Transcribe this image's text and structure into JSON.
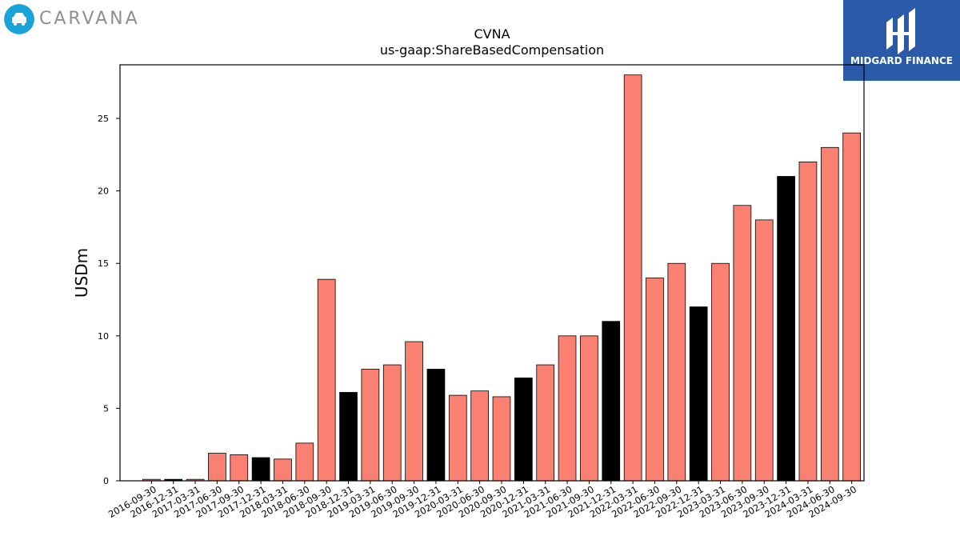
{
  "logos": {
    "carvana": {
      "text": "CARVANA",
      "accent": "#1aa3d9"
    },
    "midgard": {
      "text": "MIDGARD FINANCE",
      "color": "#2a5aa8"
    }
  },
  "chart_data": {
    "type": "bar",
    "title": "CVNA",
    "subtitle": "us-gaap:ShareBasedCompensation",
    "xlabel": "",
    "ylabel": "USDm",
    "ylim": [
      0,
      28.7
    ],
    "yticks": [
      0,
      5,
      10,
      15,
      20,
      25
    ],
    "grid": false,
    "colors": {
      "quarter": "#fa8072",
      "year_end": "#000000"
    },
    "categories": [
      "2016-09-30",
      "2016-12-31",
      "2017-03-31",
      "2017-06-30",
      "2017-09-30",
      "2017-12-31",
      "2018-03-31",
      "2018-06-30",
      "2018-09-30",
      "2018-12-31",
      "2019-03-31",
      "2019-06-30",
      "2019-09-30",
      "2019-12-31",
      "2020-03-31",
      "2020-06-30",
      "2020-09-30",
      "2020-12-31",
      "2021-03-31",
      "2021-06-30",
      "2021-09-30",
      "2021-12-31",
      "2022-03-31",
      "2022-06-30",
      "2022-09-30",
      "2022-12-31",
      "2023-03-31",
      "2023-06-30",
      "2023-09-30",
      "2023-12-31",
      "2024-03-31",
      "2024-06-30",
      "2024-09-30"
    ],
    "values": [
      0.1,
      0.1,
      0.1,
      1.9,
      1.8,
      1.6,
      1.5,
      2.6,
      13.9,
      6.1,
      7.7,
      8.0,
      9.6,
      7.7,
      5.9,
      6.2,
      5.8,
      7.1,
      8.0,
      10.0,
      10.0,
      11.0,
      28.0,
      14.0,
      15.0,
      12.0,
      15.0,
      19.0,
      18.0,
      21.0,
      22.0,
      23.0,
      24.0
    ]
  }
}
